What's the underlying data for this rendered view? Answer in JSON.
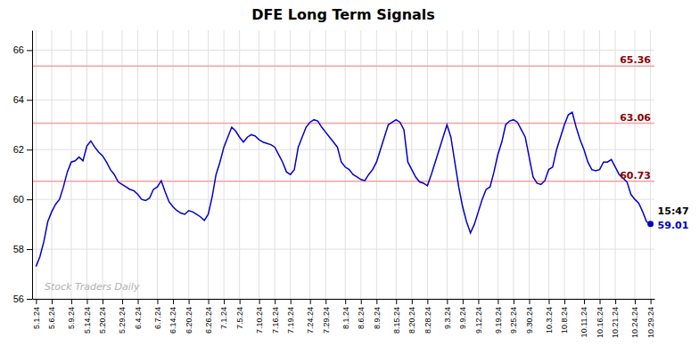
{
  "chart_data": {
    "type": "line",
    "title": "DFE Long Term Signals",
    "categories": [
      "5.1.24",
      null,
      null,
      null,
      "5.6.24",
      null,
      null,
      null,
      null,
      "5.9.24",
      null,
      null,
      null,
      "5.14.24",
      null,
      null,
      null,
      "5.20.24",
      null,
      null,
      null,
      null,
      "5.29.24",
      null,
      null,
      null,
      "6.4.24",
      null,
      null,
      null,
      null,
      "6.7.24",
      null,
      null,
      null,
      "6.14.24",
      null,
      null,
      null,
      "6.20.24",
      null,
      null,
      null,
      null,
      "6.26.24",
      null,
      null,
      null,
      "7.1.24",
      null,
      null,
      null,
      "7.5.24",
      null,
      null,
      null,
      null,
      "7.10.24",
      null,
      null,
      null,
      "7.16.24",
      null,
      null,
      null,
      "7.19.24",
      null,
      null,
      null,
      null,
      "7.24.24",
      null,
      null,
      null,
      "7.29.24",
      null,
      null,
      null,
      null,
      "8.1.24",
      null,
      null,
      null,
      "8.6.24",
      null,
      null,
      null,
      "8.9.24",
      null,
      null,
      null,
      null,
      "8.15.24",
      null,
      null,
      null,
      "8.20.24",
      null,
      null,
      null,
      "8.28.24",
      null,
      null,
      null,
      null,
      "9.3.24",
      null,
      null,
      null,
      "9.9.24",
      null,
      null,
      null,
      "9.12.24",
      null,
      null,
      null,
      null,
      "9.19.24",
      null,
      null,
      null,
      "9.25.24",
      null,
      null,
      null,
      "9.30.24",
      null,
      null,
      null,
      null,
      "10.3.24",
      null,
      null,
      null,
      "10.8.24",
      null,
      null,
      null,
      null,
      "10.11.24",
      null,
      null,
      null,
      "10.16.24",
      null,
      null,
      null,
      "10.21.24",
      null,
      null,
      null,
      null,
      "10.24.24",
      null,
      null,
      null,
      "10.29.24"
    ],
    "series": [
      {
        "color": "#0000cc",
        "values": [
          57.3,
          57.7,
          58.3,
          59.1,
          59.5,
          59.8,
          60.0,
          60.5,
          61.1,
          61.5,
          61.55,
          61.7,
          61.55,
          62.15,
          62.35,
          62.1,
          61.9,
          61.75,
          61.5,
          61.2,
          61.0,
          60.7,
          60.6,
          60.5,
          60.4,
          60.35,
          60.2,
          60.0,
          59.95,
          60.05,
          60.4,
          60.5,
          60.75,
          60.3,
          59.9,
          59.7,
          59.55,
          59.45,
          59.4,
          59.55,
          59.5,
          59.4,
          59.3,
          59.15,
          59.4,
          60.1,
          61.0,
          61.5,
          62.1,
          62.5,
          62.9,
          62.75,
          62.5,
          62.3,
          62.5,
          62.6,
          62.55,
          62.4,
          62.3,
          62.25,
          62.2,
          62.1,
          61.8,
          61.5,
          61.1,
          61.0,
          61.2,
          62.1,
          62.5,
          62.9,
          63.1,
          63.2,
          63.15,
          62.9,
          62.7,
          62.5,
          62.3,
          62.1,
          61.5,
          61.3,
          61.2,
          61.0,
          60.9,
          60.8,
          60.75,
          61.0,
          61.2,
          61.5,
          62.0,
          62.5,
          63.0,
          63.1,
          63.2,
          63.1,
          62.8,
          61.5,
          61.2,
          60.9,
          60.7,
          60.65,
          60.55,
          61.0,
          61.5,
          62.0,
          62.5,
          63.0,
          62.5,
          61.5,
          60.5,
          59.7,
          59.1,
          58.65,
          59.0,
          59.5,
          60.0,
          60.4,
          60.5,
          61.1,
          61.8,
          62.3,
          63.0,
          63.15,
          63.2,
          63.1,
          62.8,
          62.5,
          61.7,
          60.9,
          60.65,
          60.6,
          60.75,
          61.2,
          61.3,
          62.0,
          62.5,
          63.0,
          63.4,
          63.5,
          62.9,
          62.4,
          62.0,
          61.5,
          61.2,
          61.15,
          61.2,
          61.5,
          61.5,
          61.6,
          61.3,
          61.0,
          60.85,
          60.7,
          60.2,
          60.0,
          59.85,
          59.5,
          59.1,
          59.01
        ]
      }
    ],
    "ylim": [
      56,
      66.8
    ],
    "yticks": [
      56,
      58,
      60,
      62,
      64,
      66
    ],
    "grid": true,
    "hlines": [
      {
        "y": 65.36,
        "label": "65.36",
        "color": "#f4a0a0",
        "label_color": "#8b0000"
      },
      {
        "y": 63.06,
        "label": "63.06",
        "color": "#f4a0a0",
        "label_color": "#8b0000"
      },
      {
        "y": 60.73,
        "label": "60.73",
        "color": "#f4a0a0",
        "label_color": "#8b0000"
      }
    ],
    "annotations": [
      {
        "text": "15:47"
      },
      {
        "text": "59.01",
        "color": "#0000cc"
      }
    ],
    "watermark": "Stock Traders Daily"
  }
}
